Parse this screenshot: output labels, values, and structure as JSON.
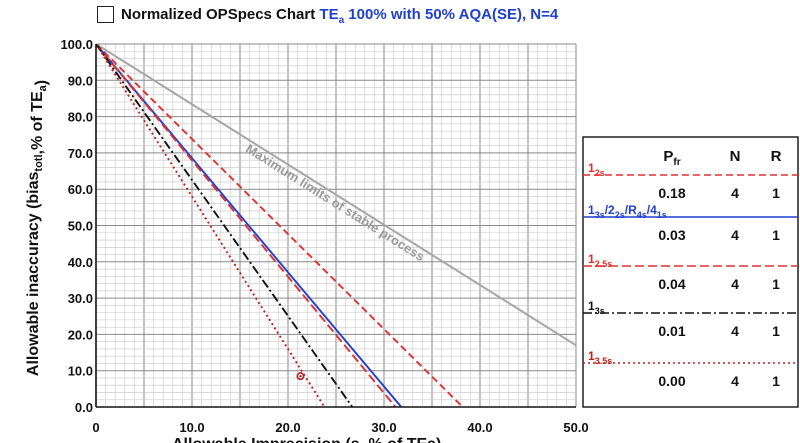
{
  "title": {
    "prefix": "Normalized OPSpecs Chart",
    "suffix": "TE",
    "suffix_sub": "a",
    "suffix_rest": " 100% with 50% AQA(SE), N=4"
  },
  "chart_data": {
    "type": "line",
    "ylabel": "Allowable inaccuracy (bias",
    "ylabel_sub": "totl",
    "ylabel_mid": ",% of TE",
    "ylabel_sub2": "a",
    "ylabel_end": ")",
    "xlabel": "Allowable Imprecision (s, % of TEa)",
    "xlim": [
      0,
      50
    ],
    "ylim": [
      0,
      100
    ],
    "x_ticks": [
      "0",
      "10.0",
      "20.0",
      "30.0",
      "40.0",
      "50.0"
    ],
    "y_ticks": [
      "0.0",
      "10.0",
      "20.0",
      "30.0",
      "40.0",
      "50.0",
      "60.0",
      "70.0",
      "80.0",
      "90.0",
      "100.0"
    ],
    "grid": true,
    "annotation": "Maximum limits of stable process",
    "series": [
      {
        "name": "Maximum limits of stable process",
        "color": "#a6a6a6",
        "dash": "solid",
        "x": [
          0,
          50
        ],
        "y": [
          100,
          17
        ]
      },
      {
        "name": "1 2s",
        "color": "#e03030",
        "dash": "dashed",
        "x": [
          0,
          38.2
        ],
        "y": [
          100,
          0
        ]
      },
      {
        "name": "1 3s/2 2s/R 4s/4 1s",
        "color": "#1f3fd1",
        "dash": "solid",
        "x": [
          0,
          31.8
        ],
        "y": [
          100,
          0
        ]
      },
      {
        "name": "1 2.5s",
        "color": "#e03030",
        "dash": "longdash",
        "x": [
          0,
          31.2
        ],
        "y": [
          100,
          0
        ]
      },
      {
        "name": "1 3s",
        "color": "#111111",
        "dash": "dashdot",
        "x": [
          0,
          26.7
        ],
        "y": [
          100,
          0
        ]
      },
      {
        "name": "1 3.5s",
        "color": "#c0201a",
        "dash": "dotted",
        "x": [
          0,
          23.8
        ],
        "y": [
          100,
          0
        ]
      }
    ],
    "operating_point": {
      "x": 21.3,
      "y": 8.5,
      "color": "#b02020"
    }
  },
  "legend": {
    "headers": {
      "p": "P",
      "p_sub": "fr",
      "n": "N",
      "r": "R"
    },
    "rules": [
      {
        "main": "1",
        "sub": "2s",
        "rest": "",
        "color": "#e03030",
        "line": "dashed",
        "p": "0.18",
        "n": "4",
        "r": "1"
      },
      {
        "main": "1",
        "sub": "3s",
        "rest": "/2",
        "sub2": "2s",
        "rest2": "/R",
        "sub3": "4s",
        "rest3": "/4",
        "sub4": "1s",
        "color": "#1f3fd1",
        "line": "solid",
        "p": "0.03",
        "n": "4",
        "r": "1"
      },
      {
        "main": "1",
        "sub": "2.5s",
        "rest": "",
        "color": "#e03030",
        "line": "longdash",
        "p": "0.04",
        "n": "4",
        "r": "1"
      },
      {
        "main": "1",
        "sub": "3s",
        "rest": "",
        "color": "#111111",
        "line": "dashdot",
        "p": "0.01",
        "n": "4",
        "r": "1"
      },
      {
        "main": "1",
        "sub": "3.5s",
        "rest": "",
        "color": "#c0201a",
        "line": "dotted",
        "p": "0.00",
        "n": "4",
        "r": "1"
      }
    ]
  }
}
